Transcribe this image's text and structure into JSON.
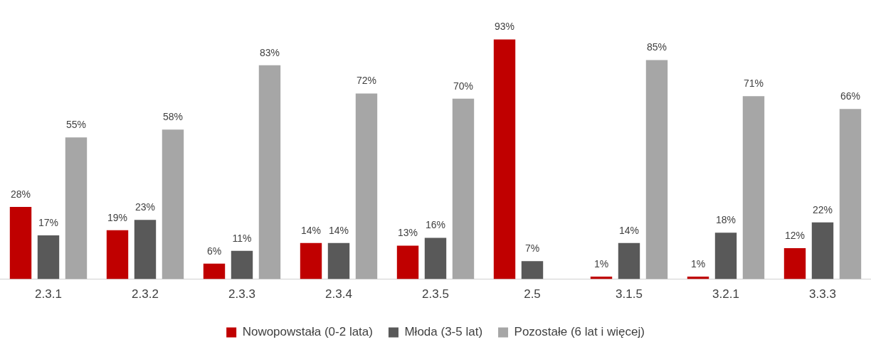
{
  "chart_data": {
    "type": "bar",
    "categories": [
      "2.3.1",
      "2.3.2",
      "2.3.3",
      "2.3.4",
      "2.3.5",
      "2.5",
      "3.1.5",
      "3.2.1",
      "3.3.3"
    ],
    "series": [
      {
        "name": "Nowopowstała (0-2 lata)",
        "color": "#c00000",
        "values": [
          28,
          19,
          6,
          14,
          13,
          93,
          1,
          1,
          12
        ],
        "value_labels": [
          "28%",
          "19%",
          "6%",
          "14%",
          "13%",
          "93%",
          "1%",
          "1%",
          "12%"
        ]
      },
      {
        "name": "Młoda (3-5 lat)",
        "color": "#595959",
        "values": [
          17,
          23,
          11,
          14,
          16,
          7,
          14,
          18,
          22
        ],
        "value_labels": [
          "17%",
          "23%",
          "11%",
          "14%",
          "16%",
          "7%",
          "14%",
          "18%",
          "22%"
        ]
      },
      {
        "name": "Pozostałe (6 lat i więcej)",
        "color": "#a6a6a6",
        "values": [
          55,
          58,
          83,
          72,
          70,
          null,
          85,
          71,
          66
        ],
        "value_labels": [
          "55%",
          "58%",
          "83%",
          "72%",
          "70%",
          null,
          "85%",
          "71%",
          "66%"
        ]
      }
    ],
    "grid": false,
    "legend": "bottom"
  }
}
